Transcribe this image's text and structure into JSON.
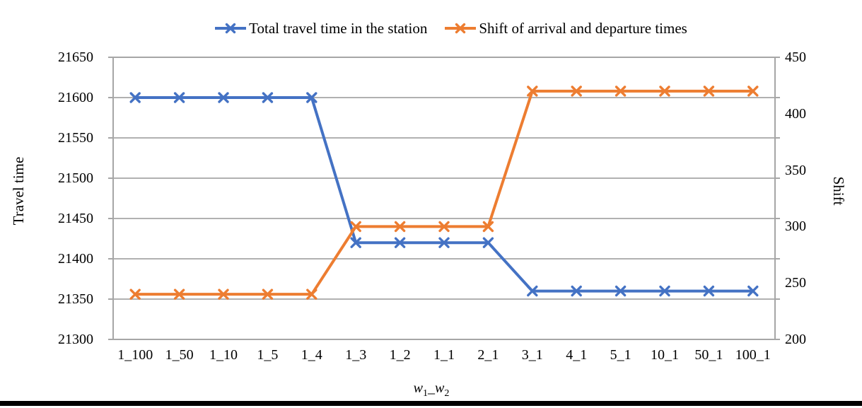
{
  "page": {
    "background_color": "#ffffff",
    "bottom_rule_color": "#000000"
  },
  "legend": [
    {
      "label": "Total travel time in the station",
      "color": "#4472C4",
      "marker": "x-marker-icon"
    },
    {
      "label": "Shift of arrival and departure times",
      "color": "#ED7D31",
      "marker": "x-marker-icon"
    }
  ],
  "chart_data": {
    "type": "line",
    "categories": [
      "1_100",
      "1_50",
      "1_10",
      "1_5",
      "1_4",
      "1_3",
      "1_2",
      "1_1",
      "2_1",
      "3_1",
      "4_1",
      "5_1",
      "10_1",
      "50_1",
      "100_1"
    ],
    "series": [
      {
        "name": "Total travel time in the station",
        "axis": "left",
        "color": "#4472C4",
        "marker": "x",
        "values": [
          21600,
          21600,
          21600,
          21600,
          21600,
          21420,
          21420,
          21420,
          21420,
          21360,
          21360,
          21360,
          21360,
          21360,
          21360
        ]
      },
      {
        "name": "Shift of arrival and departure times",
        "axis": "right",
        "color": "#ED7D31",
        "marker": "x",
        "values": [
          240,
          240,
          240,
          240,
          240,
          300,
          300,
          300,
          300,
          420,
          420,
          420,
          420,
          420,
          420
        ]
      }
    ],
    "left_axis": {
      "title": "Travel time",
      "min": 21300,
      "max": 21650,
      "step": 50,
      "ticks": [
        "21650",
        "21600",
        "21550",
        "21500",
        "21450",
        "21400",
        "21350",
        "21300"
      ]
    },
    "right_axis": {
      "title": "Shift",
      "min": 200,
      "max": 450,
      "step": 50,
      "ticks": [
        "450",
        "400",
        "350",
        "300",
        "250",
        "200"
      ]
    },
    "x_axis_title": {
      "base1": "w",
      "sub1": "1",
      "sep": "_",
      "base2": "w",
      "sub2": "2"
    },
    "style": {
      "grid_color": "#A6A6A6",
      "grid_on": true,
      "legend_position": "top"
    }
  }
}
